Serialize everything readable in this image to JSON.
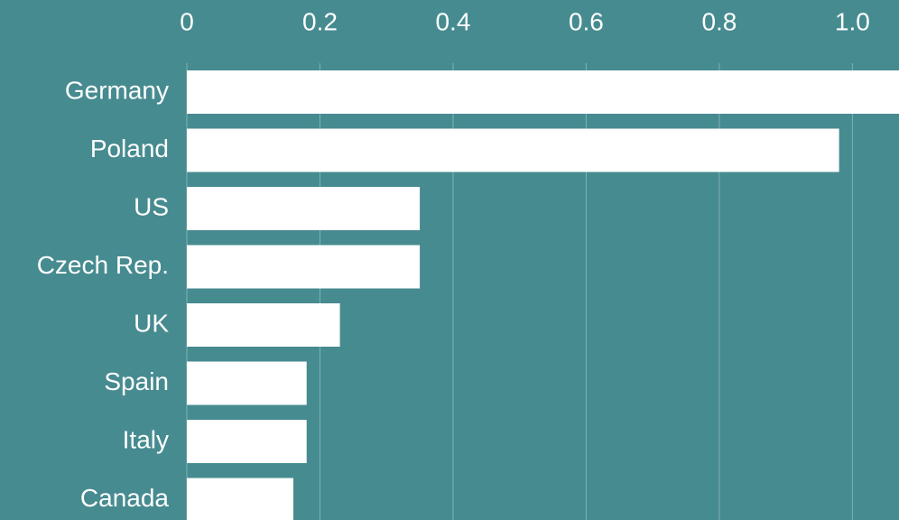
{
  "chart_data": {
    "type": "bar",
    "orientation": "horizontal",
    "categories": [
      "Germany",
      "Poland",
      "US",
      "Czech Rep.",
      "UK",
      "Spain",
      "Italy",
      "Canada"
    ],
    "values": [
      1.08,
      0.98,
      0.35,
      0.35,
      0.23,
      0.18,
      0.18,
      0.16
    ],
    "color": "#ffffff",
    "xlim": [
      0,
      1.07
    ],
    "xticks": [
      0,
      0.2,
      0.4,
      0.6,
      0.8,
      {
        "value": 1,
        "label": "1.0"
      }
    ],
    "grid": true
  }
}
